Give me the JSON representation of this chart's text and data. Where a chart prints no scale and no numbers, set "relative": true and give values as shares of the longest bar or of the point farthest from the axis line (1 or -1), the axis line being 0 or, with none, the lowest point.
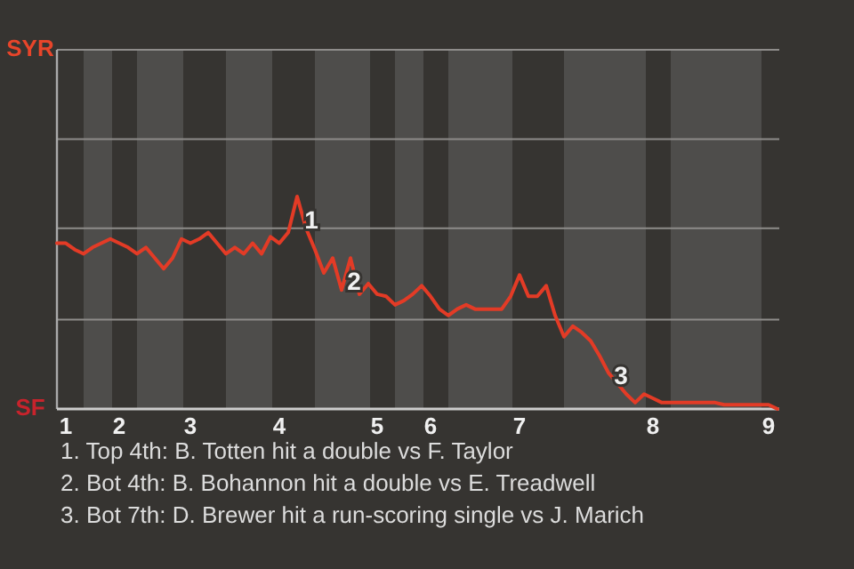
{
  "chart_data": {
    "type": "line",
    "relative": true,
    "categories": [
      null,
      "1",
      null,
      null,
      null,
      null,
      null,
      "2",
      null,
      null,
      null,
      null,
      null,
      null,
      null,
      "3",
      null,
      null,
      null,
      null,
      null,
      null,
      null,
      null,
      null,
      "4",
      null,
      null,
      null,
      null,
      null,
      null,
      null,
      null,
      null,
      null,
      "5",
      null,
      null,
      null,
      null,
      null,
      "6",
      null,
      null,
      null,
      null,
      null,
      null,
      null,
      null,
      null,
      "7",
      null,
      null,
      null,
      null,
      null,
      null,
      null,
      null,
      null,
      null,
      null,
      null,
      null,
      null,
      "8",
      null,
      null,
      null,
      null,
      null,
      null,
      null,
      null,
      null,
      null,
      null,
      null,
      "9",
      null
    ],
    "marker": "none",
    "ref_lines": [
      {
        "axis": "y",
        "value": 0.42,
        "color": "#8e8c8a"
      },
      {
        "axis": "y",
        "value": 0.85,
        "color": "#8e8c8a"
      },
      {
        "axis": "y",
        "value": 1.27,
        "color": "#8e8c8a"
      },
      {
        "axis": "y",
        "value": 1.69,
        "color": "#8e8c8a"
      }
    ],
    "series": [
      {
        "color": "#e33b26",
        "values": [
          0.78,
          0.78,
          0.75,
          0.73,
          0.76,
          0.78,
          0.8,
          0.78,
          0.76,
          0.73,
          0.76,
          0.71,
          0.66,
          0.71,
          0.8,
          0.78,
          0.8,
          0.83,
          0.78,
          0.73,
          0.76,
          0.73,
          0.78,
          0.73,
          0.81,
          0.78,
          0.83,
          1,
          0.85,
          0.75,
          0.64,
          0.71,
          0.56,
          0.71,
          0.54,
          0.59,
          0.54,
          0.53,
          0.49,
          0.51,
          0.54,
          0.58,
          0.53,
          0.47,
          0.44,
          0.47,
          0.49,
          0.47,
          0.47,
          0.47,
          0.47,
          0.53,
          0.63,
          0.53,
          0.53,
          0.58,
          0.44,
          0.34,
          0.39,
          0.36,
          0.32,
          0.25,
          0.17,
          0.12,
          0.07,
          0.03,
          0.07,
          0.05,
          0.03,
          0.03,
          0.03,
          0.03,
          0.03,
          0.03,
          0.03,
          0.02,
          0.02,
          0.02,
          0.02,
          0.02,
          0.02,
          0
        ]
      }
    ],
    "annotations": [
      "SYR",
      "SF",
      {
        "text": "1",
        "y": 0.88
      },
      {
        "text": "2",
        "y": 0.59
      },
      {
        "text": "3",
        "y": 0.15
      },
      "1. Top 4th: B. Totten hit a double vs F. Taylor",
      "2. Bot 4th: B. Bohannon hit a double vs E. Treadwell",
      "3. Bot 7th: D. Brewer hit a run-scoring single vs J. Marich"
    ]
  }
}
